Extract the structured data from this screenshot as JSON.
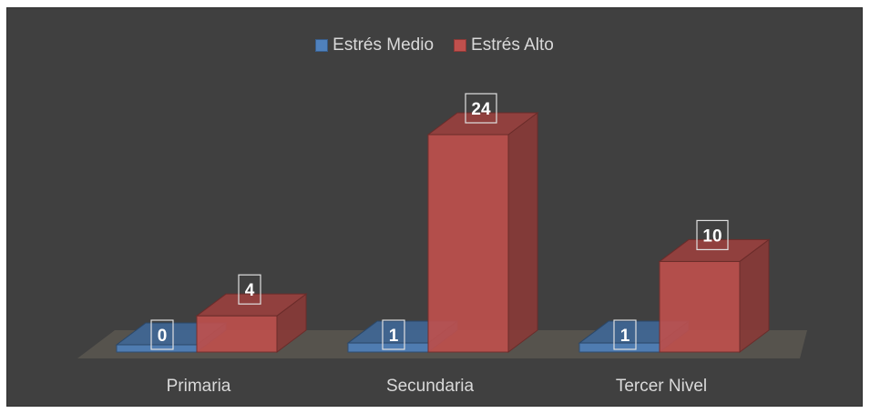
{
  "chart_data": {
    "type": "bar",
    "categories": [
      "Primaria",
      "Secundaria",
      "Tercer Nivel"
    ],
    "series": [
      {
        "name": "Estrés Medio",
        "values": [
          0,
          1,
          1
        ],
        "color": "#4f81bd"
      },
      {
        "name": "Estrés Alto",
        "values": [
          4,
          24,
          10
        ],
        "color": "#c0504d"
      }
    ],
    "data_labels": [
      [
        "0",
        "1",
        "1"
      ],
      [
        "4",
        "24",
        "10"
      ]
    ],
    "title": "",
    "xlabel": "",
    "ylabel": "",
    "ylim": [
      0,
      24
    ],
    "grid": false,
    "legend_position": "top",
    "style": "3d-clustered-column",
    "background": "#404040"
  }
}
